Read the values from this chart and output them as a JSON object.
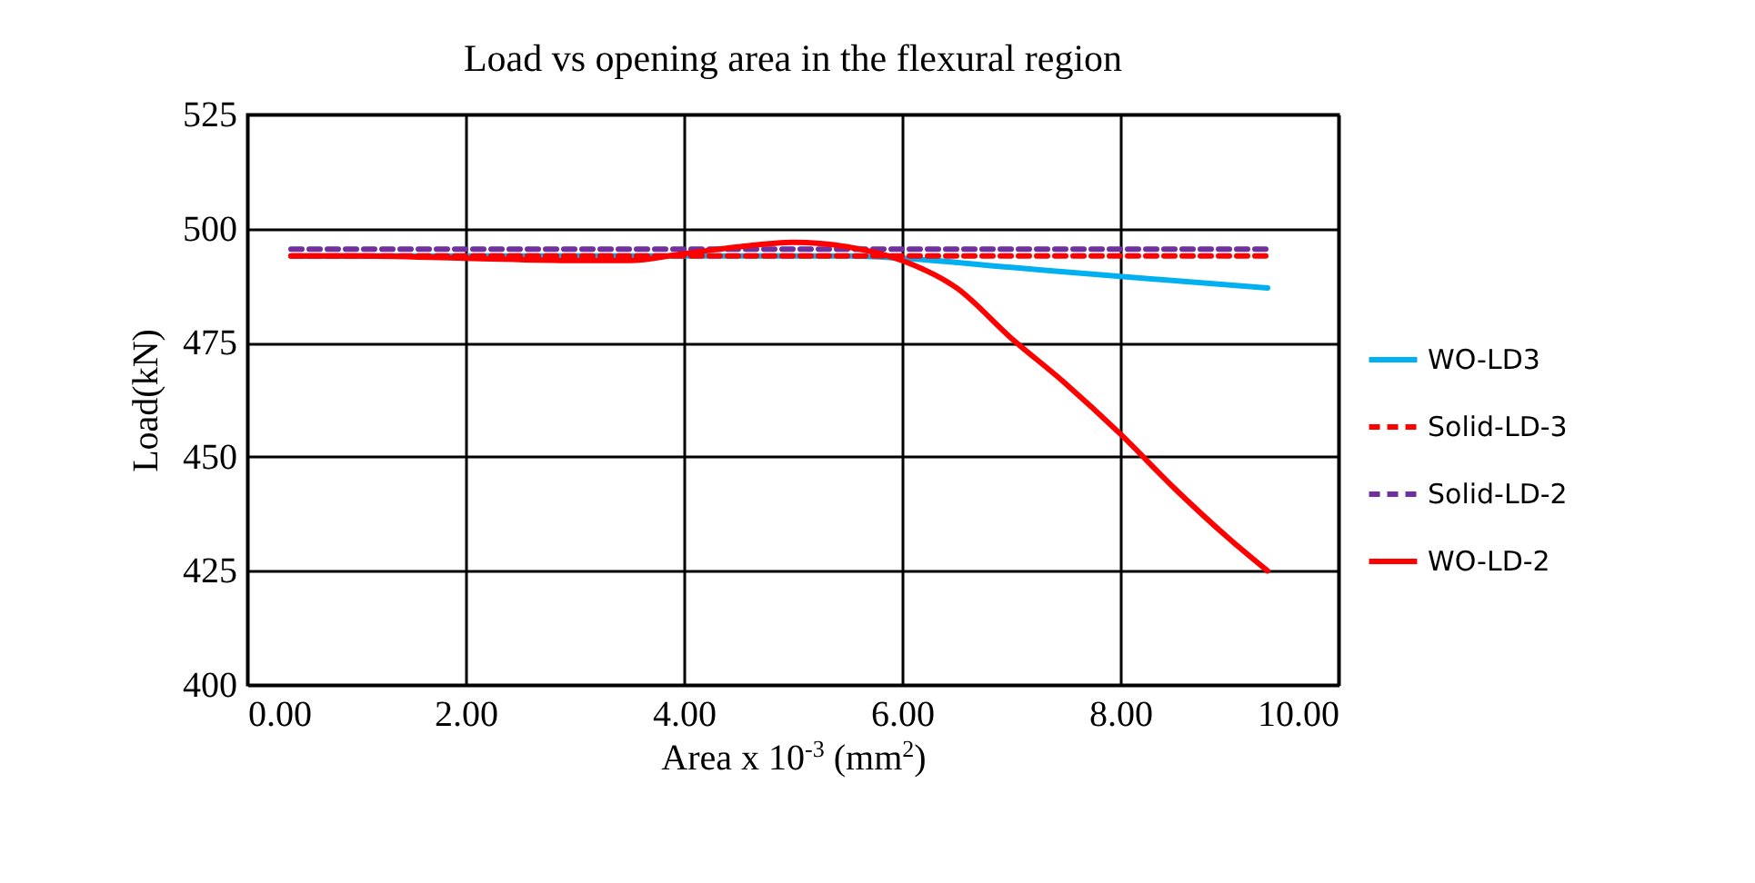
{
  "chart_data": {
    "type": "line",
    "title": "Load vs opening area in the flexural region",
    "xlabel": "Area x 10$^{-3}$ (mm$^{2}$)",
    "ylabel": "Load(kN)",
    "xlim": [
      0,
      10
    ],
    "xticks": [
      {
        "value": 0,
        "label": "0.00"
      },
      {
        "value": 2,
        "label": "2.00"
      },
      {
        "value": 4,
        "label": "4.00"
      },
      {
        "value": 6,
        "label": "6.00"
      },
      {
        "value": 8,
        "label": "8.00"
      },
      {
        "value": 10,
        "label": "10.00"
      }
    ],
    "ylim": [
      400,
      525
    ],
    "yticks": [
      400,
      425,
      450,
      475,
      500,
      525
    ],
    "grid": true,
    "legend": "right",
    "marker": "none",
    "series": [
      {
        "name": "WO-LD3",
        "color": "#00b0f0",
        "line_style": "solid",
        "x": [
          0.4,
          2,
          4,
          5.5,
          6,
          7,
          8,
          9.35
        ],
        "values": [
          494,
          494,
          494,
          494,
          493.5,
          491.5,
          489.5,
          487
        ]
      },
      {
        "name": "Solid-LD-3",
        "color": "#ff0000",
        "line_style": "dashed",
        "x": [
          0.4,
          9.35
        ],
        "values": [
          494,
          494
        ]
      },
      {
        "name": "Solid-LD-2",
        "color": "#7030a0",
        "line_style": "dashed",
        "x": [
          0.4,
          9.35
        ],
        "values": [
          495.5,
          495.5
        ]
      },
      {
        "name": "WO-LD-2",
        "color": "#ff0000",
        "line_style": "solid",
        "x": [
          0.4,
          1,
          2,
          3,
          3.5,
          4,
          4.5,
          5,
          5.5,
          6,
          6.5,
          7,
          7.5,
          8,
          8.5,
          9,
          9.35
        ],
        "values": [
          494,
          494,
          493.5,
          493,
          493,
          494.5,
          496,
          497,
          496,
          493,
          487,
          476,
          466,
          455,
          443,
          432,
          425
        ]
      }
    ]
  }
}
